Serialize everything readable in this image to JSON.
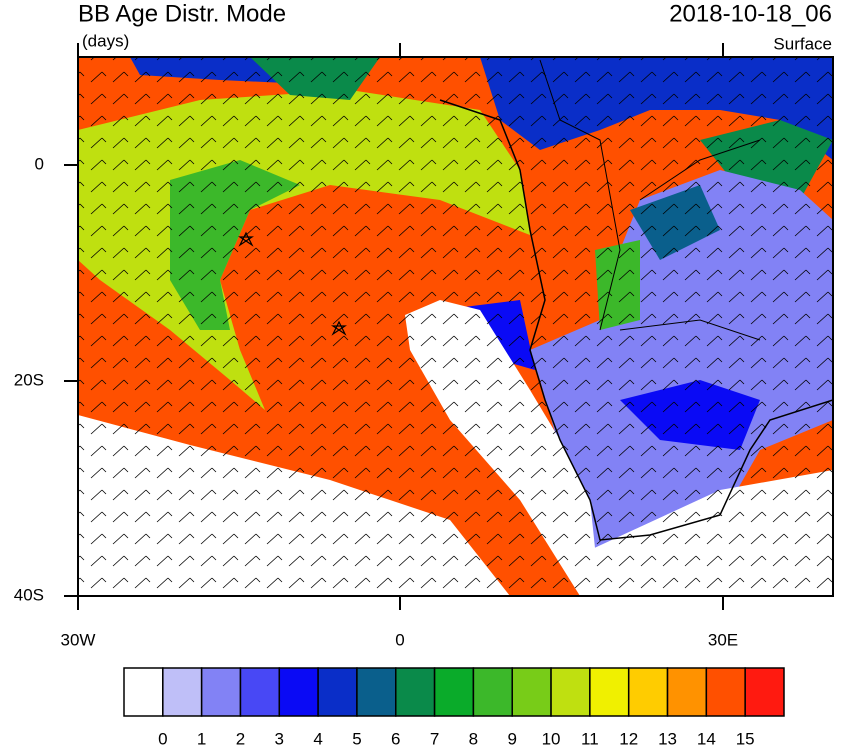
{
  "header": {
    "title": "BB Age Distr. Mode",
    "units": "(days)",
    "date": "2018-10-18_06",
    "level": "Surface"
  },
  "map": {
    "lat_labels": [
      "0",
      "20S",
      "40S"
    ],
    "lon_labels": [
      "30W",
      "0",
      "30E"
    ]
  },
  "colorbar": {
    "colors": [
      "#ffffff",
      "#bfbff8",
      "#8282f5",
      "#4848f5",
      "#0a0af5",
      "#0a2ec8",
      "#0a5f8c",
      "#0a8a4a",
      "#0aab2a",
      "#3cb82a",
      "#78cc18",
      "#bfe010",
      "#f0f000",
      "#ffcc00",
      "#ff9200",
      "#ff5000",
      "#ff1a10"
    ],
    "labels": [
      0,
      1,
      2,
      3,
      4,
      5,
      6,
      7,
      8,
      9,
      10,
      11,
      12,
      13,
      14,
      15
    ]
  }
}
